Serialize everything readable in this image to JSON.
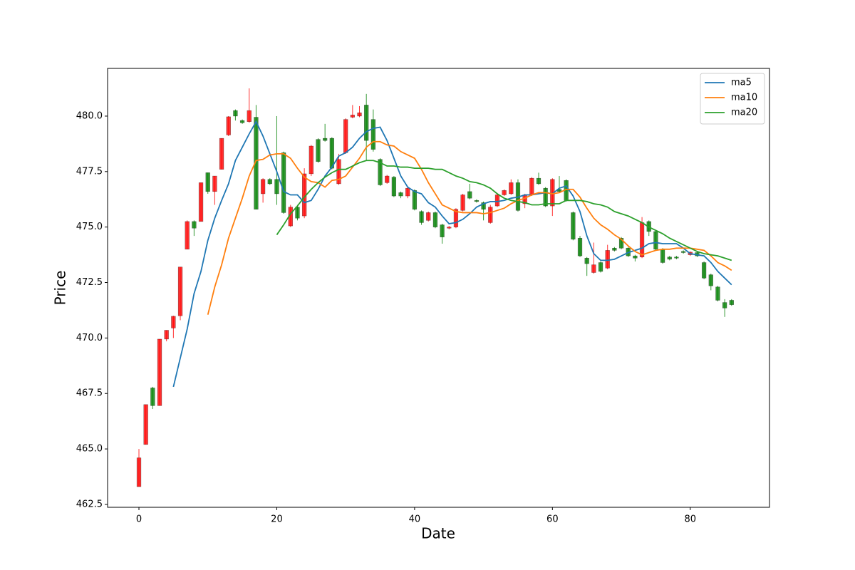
{
  "chart_data": {
    "type": "candlestick",
    "xlabel": "Date",
    "ylabel": "Price",
    "xlim": [
      -4.55,
      91.5
    ],
    "ylim": [
      462.37,
      482.15
    ],
    "xticks": [
      0,
      20,
      40,
      60,
      80
    ],
    "yticks": [
      462.5,
      {
        "value": 465,
        "label": "465.0"
      },
      467.5,
      {
        "value": 470,
        "label": "470.0"
      },
      472.5,
      {
        "value": 475,
        "label": "475.0"
      },
      477.5,
      {
        "value": 480,
        "label": "480.0"
      }
    ],
    "up_color": "#ff0000",
    "down_color": "#008000",
    "legend": "upper right",
    "x": [
      0,
      1,
      2,
      3,
      4,
      5,
      6,
      7,
      8,
      9,
      10,
      11,
      12,
      13,
      14,
      15,
      16,
      17,
      18,
      19,
      20,
      21,
      22,
      23,
      24,
      25,
      26,
      27,
      28,
      29,
      30,
      31,
      32,
      33,
      34,
      35,
      36,
      37,
      38,
      39,
      40,
      41,
      42,
      43,
      44,
      45,
      46,
      47,
      48,
      49,
      50,
      51,
      52,
      53,
      54,
      55,
      56,
      57,
      58,
      59,
      60,
      61,
      62,
      63,
      64,
      65,
      66,
      67,
      68,
      69,
      70,
      71,
      72,
      73,
      74,
      75,
      76,
      77,
      78,
      79,
      80,
      81,
      82,
      83,
      84,
      85,
      86
    ],
    "open": [
      463.3,
      465.2,
      467.75,
      466.95,
      469.95,
      470.45,
      471.0,
      474.0,
      475.25,
      475.25,
      477.45,
      476.6,
      477.6,
      479.15,
      480.25,
      479.8,
      479.75,
      479.95,
      476.5,
      477.15,
      477.15,
      478.35,
      475.05,
      475.9,
      475.5,
      477.4,
      478.95,
      479.0,
      479.0,
      476.95,
      478.35,
      479.95,
      480.0,
      480.5,
      479.85,
      478.05,
      477.0,
      477.25,
      476.55,
      476.4,
      476.65,
      475.7,
      475.3,
      475.65,
      475.1,
      474.95,
      475.0,
      475.75,
      476.6,
      476.2,
      476.1,
      475.2,
      475.95,
      476.45,
      476.5,
      477.0,
      476.05,
      476.45,
      477.2,
      476.75,
      475.95,
      476.7,
      477.1,
      475.65,
      474.5,
      473.6,
      472.95,
      473.4,
      473.15,
      474.05,
      474.5,
      474.05,
      473.7,
      473.65,
      475.25,
      474.8,
      474.0,
      473.65,
      473.65,
      473.9,
      473.75,
      473.85,
      473.4,
      472.85,
      472.3,
      471.6,
      471.7
    ],
    "high": [
      465.0,
      467.0,
      467.8,
      469.95,
      470.35,
      471.0,
      473.2,
      475.3,
      475.3,
      477.0,
      477.45,
      477.3,
      479.0,
      480.0,
      480.3,
      479.85,
      481.25,
      480.5,
      477.2,
      477.2,
      480.0,
      478.4,
      476.0,
      476.0,
      477.65,
      478.7,
      479.0,
      479.65,
      479.05,
      478.3,
      479.9,
      480.5,
      480.45,
      481.0,
      480.3,
      478.1,
      477.35,
      477.3,
      476.6,
      476.8,
      476.7,
      475.75,
      475.7,
      475.7,
      475.15,
      475.05,
      475.85,
      476.5,
      476.95,
      476.25,
      476.15,
      476.0,
      476.5,
      476.7,
      477.15,
      477.15,
      476.5,
      477.25,
      477.45,
      476.8,
      477.2,
      477.3,
      477.15,
      475.7,
      474.6,
      473.65,
      474.3,
      473.45,
      474.2,
      474.1,
      474.55,
      474.1,
      473.75,
      475.45,
      475.3,
      474.85,
      474.05,
      473.7,
      473.7,
      473.95,
      473.9,
      473.9,
      473.45,
      472.9,
      472.35,
      471.75,
      471.75
    ],
    "low": [
      463.3,
      465.2,
      466.8,
      466.95,
      469.85,
      470.0,
      470.8,
      474.0,
      474.6,
      475.25,
      476.5,
      476.0,
      477.6,
      479.1,
      479.8,
      479.65,
      479.7,
      475.8,
      476.1,
      476.9,
      476.0,
      475.6,
      475.0,
      475.3,
      475.4,
      477.3,
      477.9,
      478.85,
      477.6,
      476.9,
      478.3,
      479.9,
      479.95,
      478.0,
      478.4,
      476.85,
      476.95,
      476.35,
      476.3,
      476.3,
      475.75,
      475.1,
      475.25,
      474.95,
      474.25,
      474.9,
      474.95,
      475.7,
      476.25,
      476.1,
      475.3,
      475.15,
      475.9,
      476.4,
      476.45,
      475.7,
      475.85,
      476.4,
      476.9,
      475.9,
      475.5,
      476.55,
      476.15,
      474.4,
      473.65,
      472.8,
      472.9,
      472.95,
      473.1,
      473.9,
      474.0,
      473.65,
      473.45,
      473.6,
      474.6,
      473.95,
      473.35,
      473.5,
      473.55,
      473.8,
      473.7,
      473.65,
      472.65,
      472.15,
      471.65,
      470.95,
      471.45
    ],
    "close": [
      464.6,
      467.0,
      466.95,
      469.95,
      470.35,
      470.98,
      473.2,
      475.25,
      474.95,
      477.0,
      476.6,
      477.3,
      479.0,
      479.97,
      480.0,
      479.7,
      480.25,
      475.8,
      477.15,
      476.95,
      476.5,
      475.65,
      475.9,
      475.4,
      477.4,
      478.65,
      477.95,
      478.9,
      477.65,
      478.05,
      479.85,
      480.05,
      480.15,
      478.9,
      478.5,
      476.9,
      477.3,
      476.4,
      476.4,
      476.75,
      475.8,
      475.2,
      475.65,
      475.0,
      474.55,
      475.0,
      475.8,
      476.45,
      476.3,
      476.15,
      475.8,
      475.9,
      476.45,
      476.65,
      477.0,
      475.75,
      476.45,
      477.2,
      476.95,
      475.95,
      477.15,
      476.6,
      476.2,
      474.45,
      473.7,
      473.35,
      473.3,
      473.0,
      473.95,
      473.95,
      474.05,
      473.7,
      473.6,
      475.2,
      474.8,
      474.0,
      473.4,
      473.55,
      473.6,
      473.85,
      473.87,
      473.7,
      472.7,
      472.35,
      471.7,
      471.35,
      471.5
    ],
    "series": [
      {
        "name": "ma5",
        "color": "#1f77b4",
        "values": [
          null,
          null,
          null,
          null,
          null,
          467.8,
          469.1,
          470.4,
          472.0,
          473.0,
          474.4,
          475.4,
          476.2,
          476.95,
          478.0,
          478.6,
          479.2,
          479.75,
          479.1,
          478.3,
          477.5,
          476.6,
          476.45,
          476.45,
          476.1,
          476.2,
          476.7,
          477.3,
          477.7,
          478.2,
          478.35,
          478.6,
          479.0,
          479.3,
          479.45,
          479.5,
          478.9,
          478.1,
          477.3,
          476.8,
          476.6,
          476.5,
          476.1,
          475.9,
          475.5,
          475.15,
          475.2,
          475.35,
          475.6,
          475.9,
          476.05,
          476.15,
          476.15,
          476.2,
          476.3,
          476.35,
          476.45,
          476.45,
          476.5,
          476.55,
          476.5,
          476.75,
          476.85,
          476.4,
          475.7,
          474.6,
          473.8,
          473.5,
          473.5,
          473.55,
          473.7,
          473.85,
          473.95,
          474.05,
          474.25,
          474.3,
          474.25,
          474.25,
          474.25,
          474.05,
          473.8,
          473.75,
          473.7,
          473.4,
          473.0,
          472.7,
          472.4
        ]
      },
      {
        "name": "ma10",
        "color": "#ff7f0e",
        "values": [
          null,
          null,
          null,
          null,
          null,
          null,
          null,
          null,
          null,
          null,
          471.05,
          472.3,
          473.3,
          474.5,
          475.4,
          476.3,
          477.3,
          478.0,
          478.05,
          478.25,
          478.3,
          478.3,
          478.1,
          477.65,
          477.25,
          477.05,
          477.0,
          476.8,
          477.1,
          477.15,
          477.3,
          477.7,
          478.1,
          478.6,
          478.85,
          478.85,
          478.7,
          478.65,
          478.4,
          478.25,
          478.1,
          477.6,
          477.0,
          476.5,
          476.0,
          475.85,
          475.7,
          475.65,
          475.65,
          475.65,
          475.6,
          475.65,
          475.75,
          475.85,
          476.05,
          476.2,
          476.3,
          476.45,
          476.55,
          476.55,
          476.5,
          476.55,
          476.7,
          476.7,
          476.35,
          475.85,
          475.4,
          475.1,
          474.9,
          474.65,
          474.45,
          474.15,
          473.9,
          473.75,
          473.85,
          473.95,
          474.0,
          474.0,
          474.05,
          474.05,
          474.05,
          474.0,
          473.95,
          473.7,
          473.4,
          473.25,
          473.05
        ]
      },
      {
        "name": "ma20",
        "color": "#2ca02c",
        "values": [
          null,
          null,
          null,
          null,
          null,
          null,
          null,
          null,
          null,
          null,
          null,
          null,
          null,
          null,
          null,
          null,
          null,
          null,
          null,
          null,
          474.65,
          475.1,
          475.6,
          475.95,
          476.35,
          476.7,
          477.0,
          477.25,
          477.45,
          477.6,
          477.6,
          477.75,
          477.9,
          478.0,
          478.0,
          477.9,
          477.75,
          477.75,
          477.7,
          477.7,
          477.65,
          477.65,
          477.65,
          477.6,
          477.6,
          477.45,
          477.3,
          477.2,
          477.05,
          477.0,
          476.9,
          476.75,
          476.5,
          476.3,
          476.2,
          476.15,
          476.1,
          476.0,
          476.0,
          476.05,
          476.05,
          476.05,
          476.2,
          476.2,
          476.2,
          476.15,
          476.05,
          476.0,
          475.9,
          475.7,
          475.6,
          475.5,
          475.35,
          475.2,
          475.0,
          474.85,
          474.7,
          474.5,
          474.35,
          474.2,
          474.05,
          473.9,
          473.8,
          473.75,
          473.7,
          473.6,
          473.5
        ]
      }
    ]
  }
}
